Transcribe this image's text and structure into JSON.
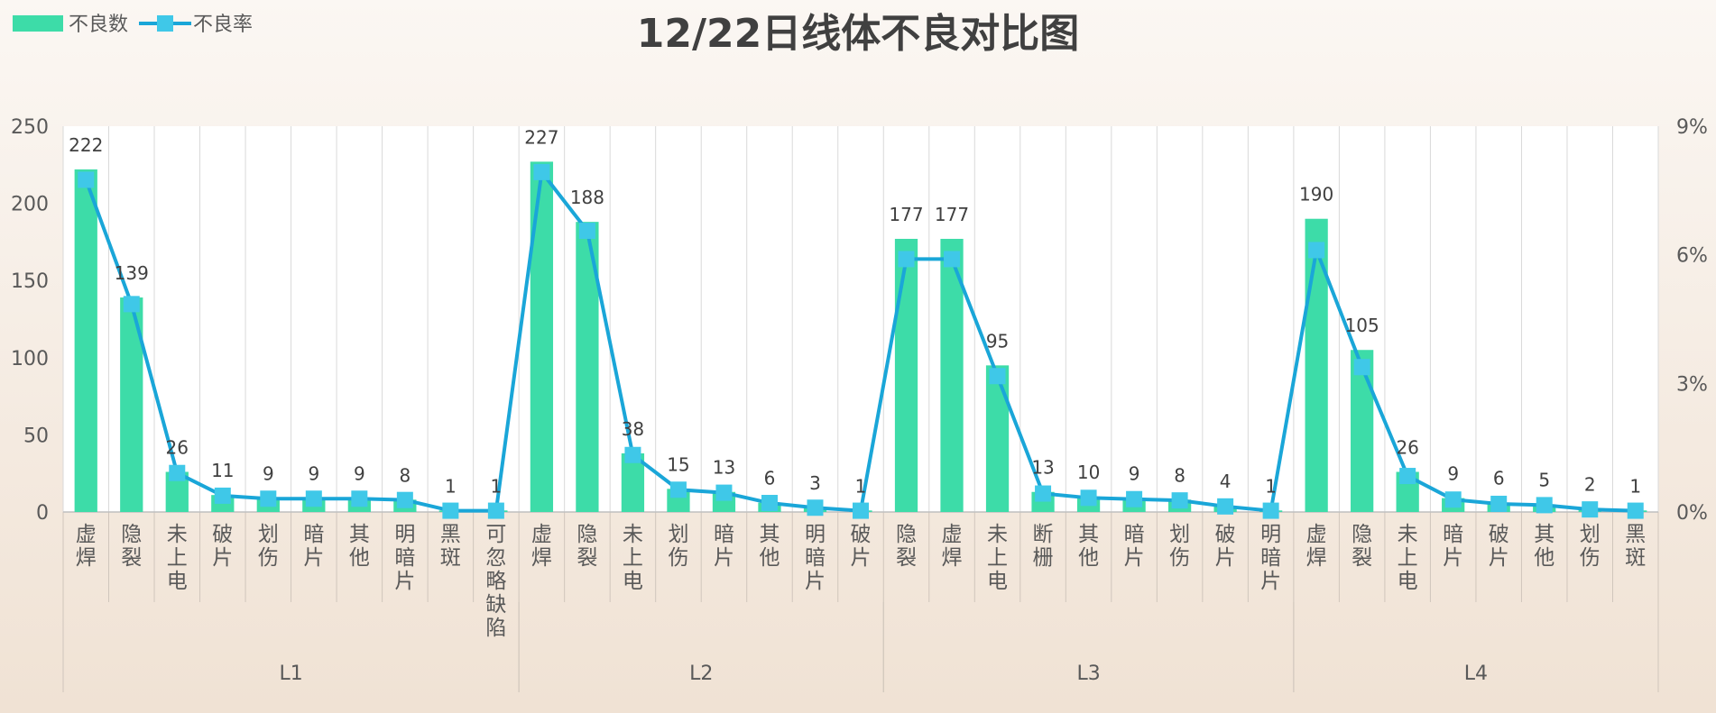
{
  "chart_data": {
    "type": "bar",
    "title": "12/22日线体不良对比图",
    "colors": {
      "bar": "#3DDCA8",
      "line": "#1AA6D8",
      "marker": "#3FC8E8"
    },
    "legend": {
      "position": "top-left",
      "items": [
        {
          "name": "不良数",
          "kind": "bar"
        },
        {
          "name": "不良率",
          "kind": "line"
        }
      ]
    },
    "ylim": [
      0,
      250
    ],
    "yticks": [
      "0",
      "50",
      "100",
      "150",
      "200",
      "250"
    ],
    "y2lim": [
      0,
      9
    ],
    "y2ticks": [
      "0%",
      "3%",
      "6%",
      "9%"
    ],
    "grid": "vertical",
    "groups": [
      {
        "name": "L1",
        "categories": [
          "虚焊",
          "隐裂",
          "未上电",
          "破片",
          "划伤",
          "暗片",
          "其他",
          "明暗片",
          "黑斑",
          "可忽略缺陷"
        ],
        "counts": [
          222,
          139,
          26,
          11,
          9,
          9,
          9,
          8,
          1,
          1
        ],
        "rates": [
          7.75,
          4.85,
          0.91,
          0.38,
          0.31,
          0.31,
          0.31,
          0.28,
          0.03,
          0.03
        ]
      },
      {
        "name": "L2",
        "categories": [
          "虚焊",
          "隐裂",
          "未上电",
          "划伤",
          "暗片",
          "其他",
          "明暗片",
          "破片"
        ],
        "counts": [
          227,
          188,
          38,
          15,
          13,
          6,
          3,
          1
        ],
        "rates": [
          7.93,
          6.56,
          1.33,
          0.52,
          0.45,
          0.21,
          0.1,
          0.03
        ]
      },
      {
        "name": "L3",
        "categories": [
          "隐裂",
          "虚焊",
          "未上电",
          "断栅",
          "其他",
          "暗片",
          "划伤",
          "破片",
          "明暗片"
        ],
        "counts": [
          177,
          177,
          95,
          13,
          10,
          9,
          8,
          4,
          1
        ],
        "rates": [
          5.9,
          5.9,
          3.17,
          0.43,
          0.33,
          0.3,
          0.27,
          0.13,
          0.03
        ]
      },
      {
        "name": "L4",
        "categories": [
          "虚焊",
          "隐裂",
          "未上电",
          "暗片",
          "破片",
          "其他",
          "划伤",
          "黑斑"
        ],
        "counts": [
          190,
          105,
          26,
          9,
          6,
          5,
          2,
          1
        ],
        "rates": [
          6.11,
          3.38,
          0.84,
          0.29,
          0.19,
          0.16,
          0.06,
          0.03
        ]
      }
    ]
  }
}
